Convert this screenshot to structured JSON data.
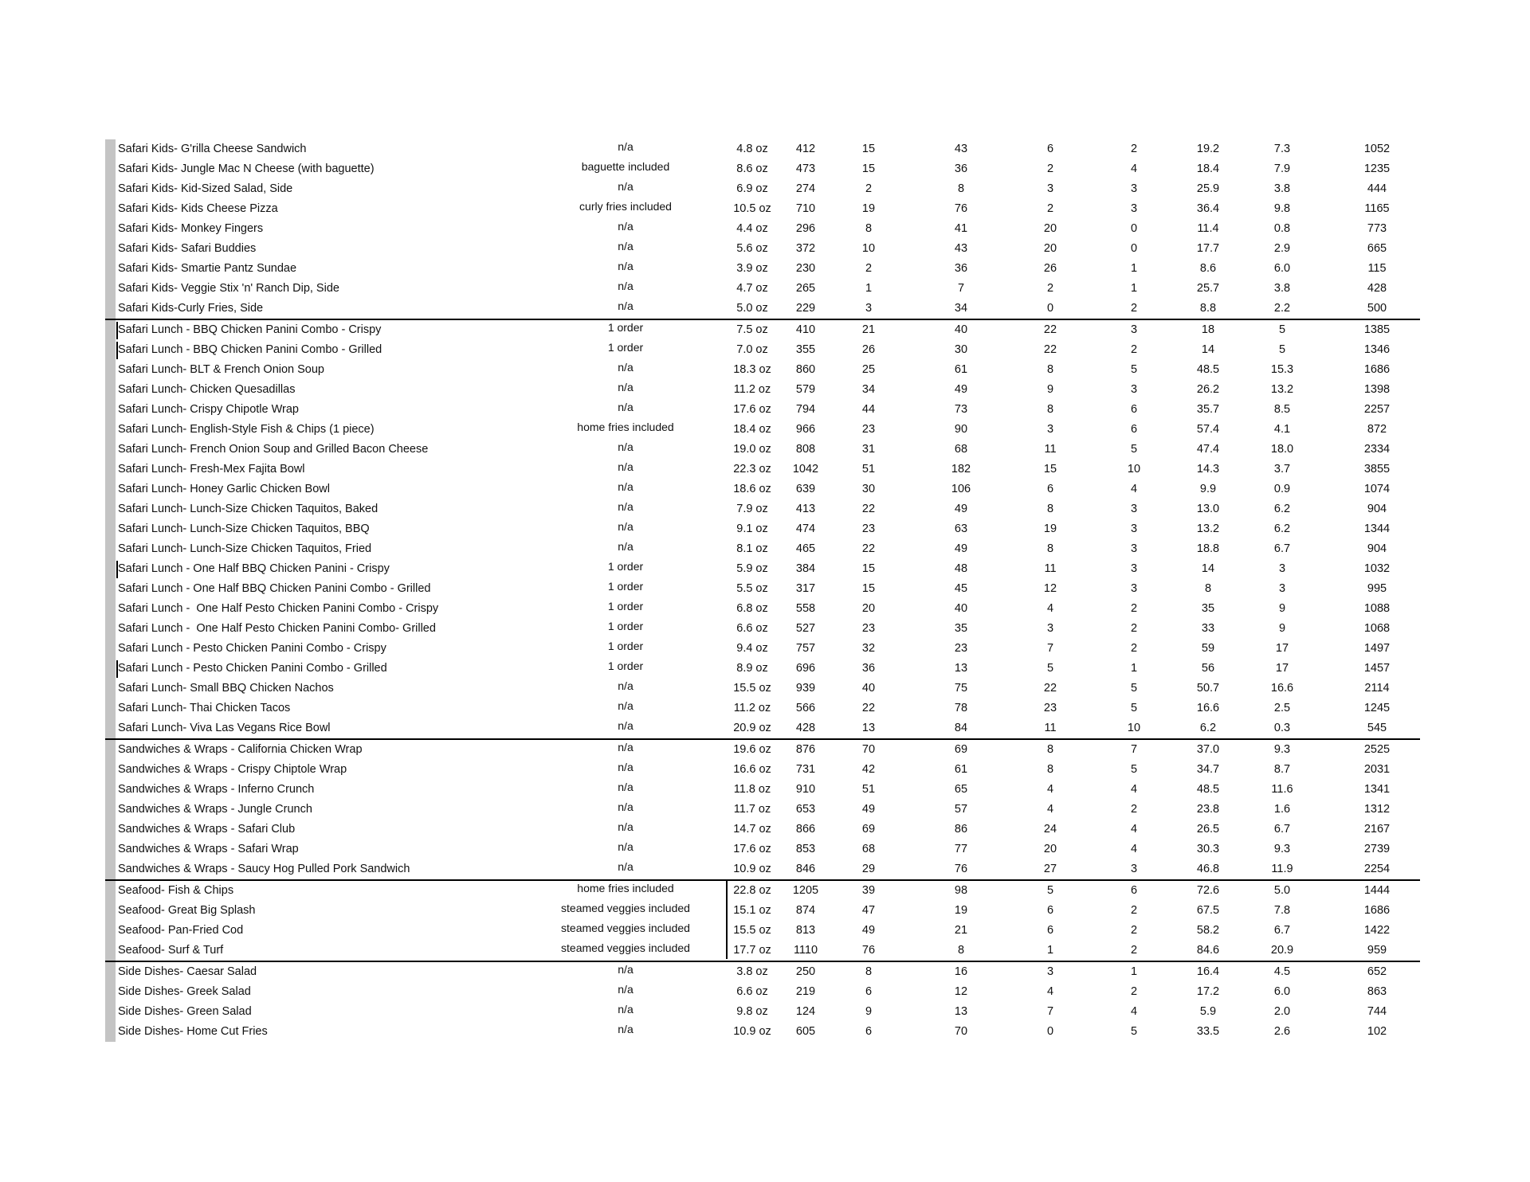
{
  "rows": [
    [
      "Safari Kids- G'rilla Cheese Sandwich",
      "n/a",
      "4.8 oz",
      "412",
      "15",
      "43",
      "6",
      "2",
      "19.2",
      "7.3",
      "1052"
    ],
    [
      "Safari Kids- Jungle Mac N Cheese (with baguette)",
      "baguette included",
      "8.6 oz",
      "473",
      "15",
      "36",
      "2",
      "4",
      "18.4",
      "7.9",
      "1235"
    ],
    [
      "Safari Kids- Kid-Sized Salad, Side",
      "n/a",
      "6.9 oz",
      "274",
      "2",
      "8",
      "3",
      "3",
      "25.9",
      "3.8",
      "444"
    ],
    [
      "Safari Kids- Kids Cheese Pizza",
      "curly fries included",
      "10.5 oz",
      "710",
      "19",
      "76",
      "2",
      "3",
      "36.4",
      "9.8",
      "1165"
    ],
    [
      "Safari Kids- Monkey Fingers",
      "n/a",
      "4.4 oz",
      "296",
      "8",
      "41",
      "20",
      "0",
      "11.4",
      "0.8",
      "773"
    ],
    [
      "Safari Kids- Safari Buddies",
      "n/a",
      "5.6 oz",
      "372",
      "10",
      "43",
      "20",
      "0",
      "17.7",
      "2.9",
      "665"
    ],
    [
      "Safari Kids- Smartie Pantz Sundae",
      "n/a",
      "3.9 oz",
      "230",
      "2",
      "36",
      "26",
      "1",
      "8.6",
      "6.0",
      "115"
    ],
    [
      "Safari Kids- Veggie Stix 'n' Ranch Dip, Side",
      "n/a",
      "4.7 oz",
      "265",
      "1",
      "7",
      "2",
      "1",
      "25.7",
      "3.8",
      "428"
    ],
    [
      "Safari Kids-Curly Fries, Side",
      "n/a",
      "5.0 oz",
      "229",
      "3",
      "34",
      "0",
      "2",
      "8.8",
      "2.2",
      "500"
    ],
    [
      "Safari Lunch - BBQ Chicken Panini Combo - Crispy",
      "1 order",
      "7.5 oz",
      "410",
      "21",
      "40",
      "22",
      "3",
      "18",
      "5",
      "1385"
    ],
    [
      "Safari Lunch - BBQ Chicken Panini Combo - Grilled",
      "1 order",
      "7.0 oz",
      "355",
      "26",
      "30",
      "22",
      "2",
      "14",
      "5",
      "1346"
    ],
    [
      "Safari Lunch- BLT & French Onion Soup",
      "n/a",
      "18.3 oz",
      "860",
      "25",
      "61",
      "8",
      "5",
      "48.5",
      "15.3",
      "1686"
    ],
    [
      "Safari Lunch- Chicken Quesadillas",
      "n/a",
      "11.2 oz",
      "579",
      "34",
      "49",
      "9",
      "3",
      "26.2",
      "13.2",
      "1398"
    ],
    [
      "Safari Lunch- Crispy Chipotle Wrap",
      "n/a",
      "17.6 oz",
      "794",
      "44",
      "73",
      "8",
      "6",
      "35.7",
      "8.5",
      "2257"
    ],
    [
      "Safari Lunch- English-Style Fish & Chips (1 piece)",
      "home fries included",
      "18.4 oz",
      "966",
      "23",
      "90",
      "3",
      "6",
      "57.4",
      "4.1",
      "872"
    ],
    [
      "Safari Lunch- French Onion Soup and Grilled Bacon Cheese",
      "n/a",
      "19.0 oz",
      "808",
      "31",
      "68",
      "11",
      "5",
      "47.4",
      "18.0",
      "2334"
    ],
    [
      "Safari Lunch- Fresh-Mex Fajita Bowl",
      "n/a",
      "22.3 oz",
      "1042",
      "51",
      "182",
      "15",
      "10",
      "14.3",
      "3.7",
      "3855"
    ],
    [
      "Safari Lunch- Honey Garlic Chicken Bowl",
      "n/a",
      "18.6 oz",
      "639",
      "30",
      "106",
      "6",
      "4",
      "9.9",
      "0.9",
      "1074"
    ],
    [
      "Safari Lunch- Lunch-Size Chicken Taquitos, Baked",
      "n/a",
      "7.9 oz",
      "413",
      "22",
      "49",
      "8",
      "3",
      "13.0",
      "6.2",
      "904"
    ],
    [
      "Safari Lunch- Lunch-Size Chicken Taquitos, BBQ",
      "n/a",
      "9.1 oz",
      "474",
      "23",
      "63",
      "19",
      "3",
      "13.2",
      "6.2",
      "1344"
    ],
    [
      "Safari Lunch- Lunch-Size Chicken Taquitos, Fried",
      "n/a",
      "8.1 oz",
      "465",
      "22",
      "49",
      "8",
      "3",
      "18.8",
      "6.7",
      "904"
    ],
    [
      "Safari Lunch - One Half BBQ Chicken Panini - Crispy",
      "1 order",
      "5.9 oz",
      "384",
      "15",
      "48",
      "11",
      "3",
      "14",
      "3",
      "1032"
    ],
    [
      "Safari Lunch - One Half BBQ Chicken Panini Combo - Grilled",
      "1 order",
      "5.5 oz",
      "317",
      "15",
      "45",
      "12",
      "3",
      "8",
      "3",
      "995"
    ],
    [
      "Safari Lunch -  One Half Pesto Chicken Panini Combo - Crispy",
      "1 order",
      "6.8 oz",
      "558",
      "20",
      "40",
      "4",
      "2",
      "35",
      "9",
      "1088"
    ],
    [
      "Safari Lunch -  One Half Pesto Chicken Panini Combo- Grilled",
      "1 order",
      "6.6 oz",
      "527",
      "23",
      "35",
      "3",
      "2",
      "33",
      "9",
      "1068"
    ],
    [
      "Safari Lunch - Pesto Chicken Panini Combo - Crispy",
      "1 order",
      "9.4 oz",
      "757",
      "32",
      "23",
      "7",
      "2",
      "59",
      "17",
      "1497"
    ],
    [
      "Safari Lunch - Pesto Chicken Panini Combo - Grilled",
      "1 order",
      "8.9 oz",
      "696",
      "36",
      "13",
      "5",
      "1",
      "56",
      "17",
      "1457"
    ],
    [
      "Safari Lunch- Small BBQ Chicken Nachos",
      "n/a",
      "15.5 oz",
      "939",
      "40",
      "75",
      "22",
      "5",
      "50.7",
      "16.6",
      "2114"
    ],
    [
      "Safari Lunch- Thai Chicken Tacos",
      "n/a",
      "11.2 oz",
      "566",
      "22",
      "78",
      "23",
      "5",
      "16.6",
      "2.5",
      "1245"
    ],
    [
      "Safari Lunch- Viva Las Vegans Rice Bowl",
      "n/a",
      "20.9 oz",
      "428",
      "13",
      "84",
      "11",
      "10",
      "6.2",
      "0.3",
      "545"
    ],
    [
      "Sandwiches & Wraps - California Chicken Wrap",
      "n/a",
      "19.6 oz",
      "876",
      "70",
      "69",
      "8",
      "7",
      "37.0",
      "9.3",
      "2525"
    ],
    [
      "Sandwiches & Wraps - Crispy Chiptole Wrap",
      "n/a",
      "16.6 oz",
      "731",
      "42",
      "61",
      "8",
      "5",
      "34.7",
      "8.7",
      "2031"
    ],
    [
      "Sandwiches & Wraps - Inferno Crunch",
      "n/a",
      "11.8 oz",
      "910",
      "51",
      "65",
      "4",
      "4",
      "48.5",
      "11.6",
      "1341"
    ],
    [
      "Sandwiches & Wraps - Jungle Crunch",
      "n/a",
      "11.7 oz",
      "653",
      "49",
      "57",
      "4",
      "2",
      "23.8",
      "1.6",
      "1312"
    ],
    [
      "Sandwiches & Wraps - Safari Club",
      "n/a",
      "14.7 oz",
      "866",
      "69",
      "86",
      "24",
      "4",
      "26.5",
      "6.7",
      "2167"
    ],
    [
      "Sandwiches & Wraps - Safari Wrap",
      "n/a",
      "17.6 oz",
      "853",
      "68",
      "77",
      "20",
      "4",
      "30.3",
      "9.3",
      "2739"
    ],
    [
      "Sandwiches & Wraps - Saucy Hog Pulled Pork Sandwich",
      "n/a",
      "10.9 oz",
      "846",
      "29",
      "76",
      "27",
      "3",
      "46.8",
      "11.9",
      "2254"
    ],
    [
      "Seafood- Fish & Chips",
      "home fries included",
      "22.8 oz",
      "1205",
      "39",
      "98",
      "5",
      "6",
      "72.6",
      "5.0",
      "1444"
    ],
    [
      "Seafood- Great Big Splash",
      "steamed veggies included",
      "15.1 oz",
      "874",
      "47",
      "19",
      "6",
      "2",
      "67.5",
      "7.8",
      "1686"
    ],
    [
      "Seafood- Pan-Fried Cod",
      "steamed veggies included",
      "15.5 oz",
      "813",
      "49",
      "21",
      "6",
      "2",
      "58.2",
      "6.7",
      "1422"
    ],
    [
      "Seafood- Surf & Turf",
      "steamed veggies included",
      "17.7 oz",
      "1110",
      "76",
      "8",
      "1",
      "2",
      "84.6",
      "20.9",
      "959"
    ],
    [
      "Side Dishes- Caesar Salad",
      "n/a",
      "3.8 oz",
      "250",
      "8",
      "16",
      "3",
      "1",
      "16.4",
      "4.5",
      "652"
    ],
    [
      "Side Dishes- Greek Salad",
      "n/a",
      "6.6 oz",
      "219",
      "6",
      "12",
      "4",
      "2",
      "17.2",
      "6.0",
      "863"
    ],
    [
      "Side Dishes- Green Salad",
      "n/a",
      "9.8 oz",
      "124",
      "9",
      "13",
      "7",
      "4",
      "5.9",
      "2.0",
      "744"
    ],
    [
      "Side Dishes- Home Cut Fries",
      "n/a",
      "10.9 oz",
      "605",
      "6",
      "70",
      "0",
      "5",
      "33.5",
      "2.6",
      "102"
    ]
  ]
}
